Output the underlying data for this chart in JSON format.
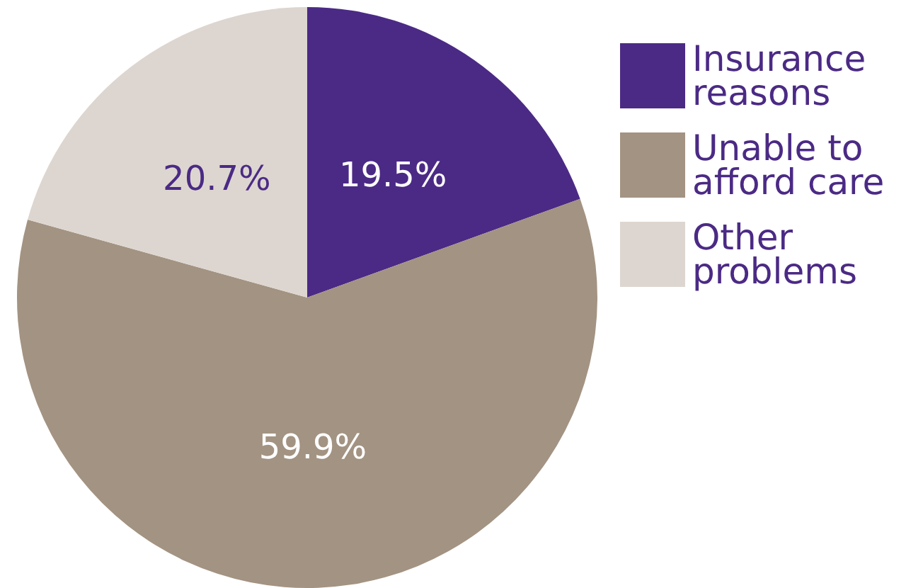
{
  "chart_data": {
    "type": "pie",
    "categories": [
      "Insurance reasons",
      "Unable to afford care",
      "Other problems"
    ],
    "values": [
      19.5,
      59.9,
      20.7
    ],
    "colors": [
      "#4b2a85",
      "#a39382",
      "#ddd6d0"
    ],
    "value_labels": [
      "19.5%",
      "59.9%",
      "20.7%"
    ],
    "legend": "right"
  }
}
